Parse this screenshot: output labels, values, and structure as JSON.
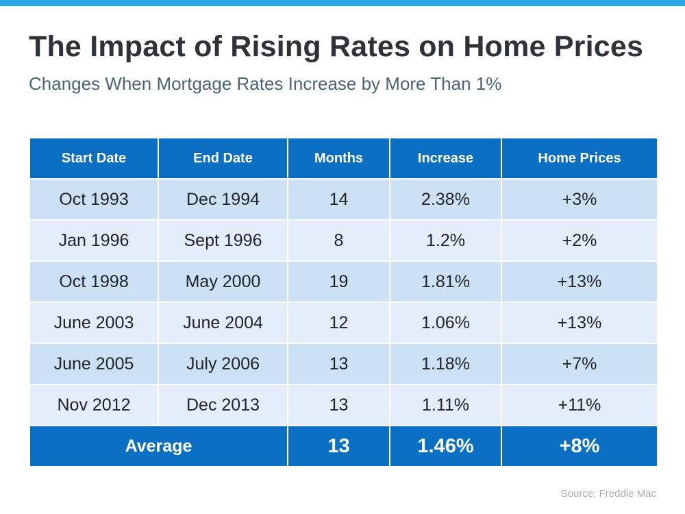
{
  "header": {
    "title": "The Impact of Rising Rates on Home Prices",
    "subtitle": "Changes When Mortgage Rates Increase by More Than 1%"
  },
  "table": {
    "columns": [
      "Start Date",
      "End Date",
      "Months",
      "Increase",
      "Home Prices"
    ],
    "rows": [
      [
        "Oct 1993",
        "Dec 1994",
        "14",
        "2.38%",
        "+3%"
      ],
      [
        "Jan 1996",
        "Sept 1996",
        "8",
        "1.2%",
        "+2%"
      ],
      [
        "Oct 1998",
        "May 2000",
        "19",
        "1.81%",
        "+13%"
      ],
      [
        "June 2003",
        "June 2004",
        "12",
        "1.06%",
        "+13%"
      ],
      [
        "June 2005",
        "July 2006",
        "13",
        "1.18%",
        "+7%"
      ],
      [
        "Nov 2012",
        "Dec 2013",
        "13",
        "1.11%",
        "+11%"
      ]
    ],
    "average": {
      "label": "Average",
      "months": "13",
      "increase": "1.46%",
      "home_prices": "+8%"
    }
  },
  "source": "Source: Freddie Mac"
}
